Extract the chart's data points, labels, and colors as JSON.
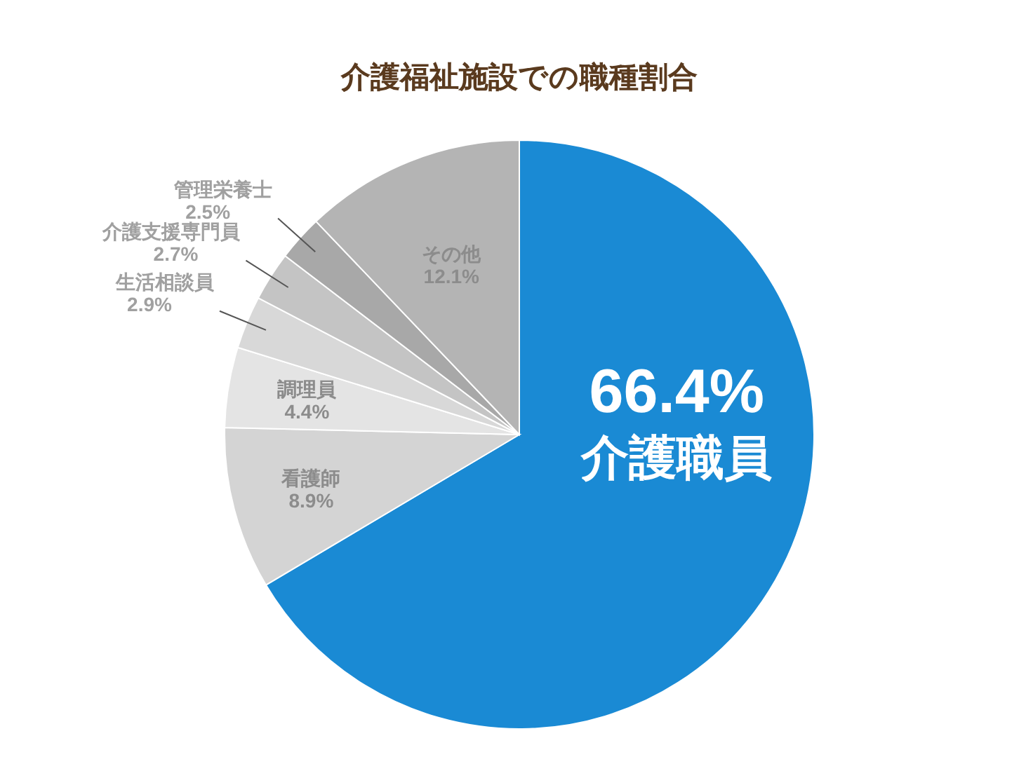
{
  "chart_data": {
    "type": "pie",
    "title": "介護福祉施設での職種割合",
    "categories": [
      "介護職員",
      "看護師",
      "調理員",
      "生活相談員",
      "介護支援専門員",
      "管理栄養士",
      "その他"
    ],
    "values": [
      66.4,
      8.9,
      4.4,
      2.9,
      2.7,
      2.5,
      12.1
    ],
    "value_labels": [
      "66.4%",
      "8.9%",
      "4.4%",
      "2.9%",
      "2.7%",
      "2.5%",
      "12.1%"
    ],
    "colors": [
      "#1a8ad4",
      "#d4d4d4",
      "#e4e4e4",
      "#d8d8d8",
      "#c4c4c4",
      "#a8a8a8",
      "#b4b4b4"
    ],
    "legend": false
  }
}
